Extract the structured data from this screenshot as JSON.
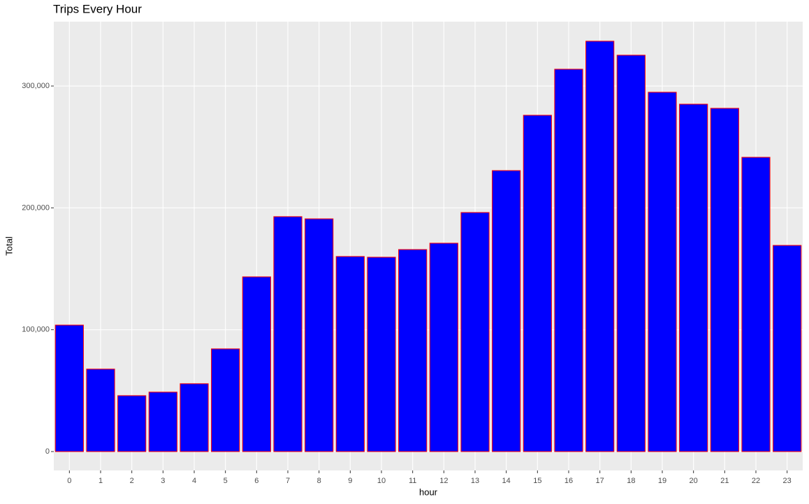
{
  "chart_data": {
    "type": "bar",
    "title": "Trips Every Hour",
    "x_label": "hour",
    "y_label": "Total",
    "categories": [
      "0",
      "1",
      "2",
      "3",
      "4",
      "5",
      "6",
      "7",
      "8",
      "9",
      "10",
      "11",
      "12",
      "13",
      "14",
      "15",
      "16",
      "17",
      "18",
      "19",
      "20",
      "21",
      "22",
      "23"
    ],
    "values": [
      103800,
      67700,
      45900,
      48800,
      55700,
      84300,
      143400,
      192800,
      191000,
      160100,
      159500,
      165800,
      171000,
      196200,
      230600,
      276000,
      313800,
      336800,
      325300,
      294900,
      285100,
      281700,
      241500,
      169200
    ],
    "color": "#0000ff",
    "edge_color": "#ff0000",
    "ylim": [
      -15500,
      352800
    ],
    "yticks": [
      0,
      {
        "value": 100000,
        "label": "100,000"
      },
      {
        "value": 200000,
        "label": "200,000"
      },
      {
        "value": 300000,
        "label": "300,000"
      }
    ],
    "grid": true
  }
}
